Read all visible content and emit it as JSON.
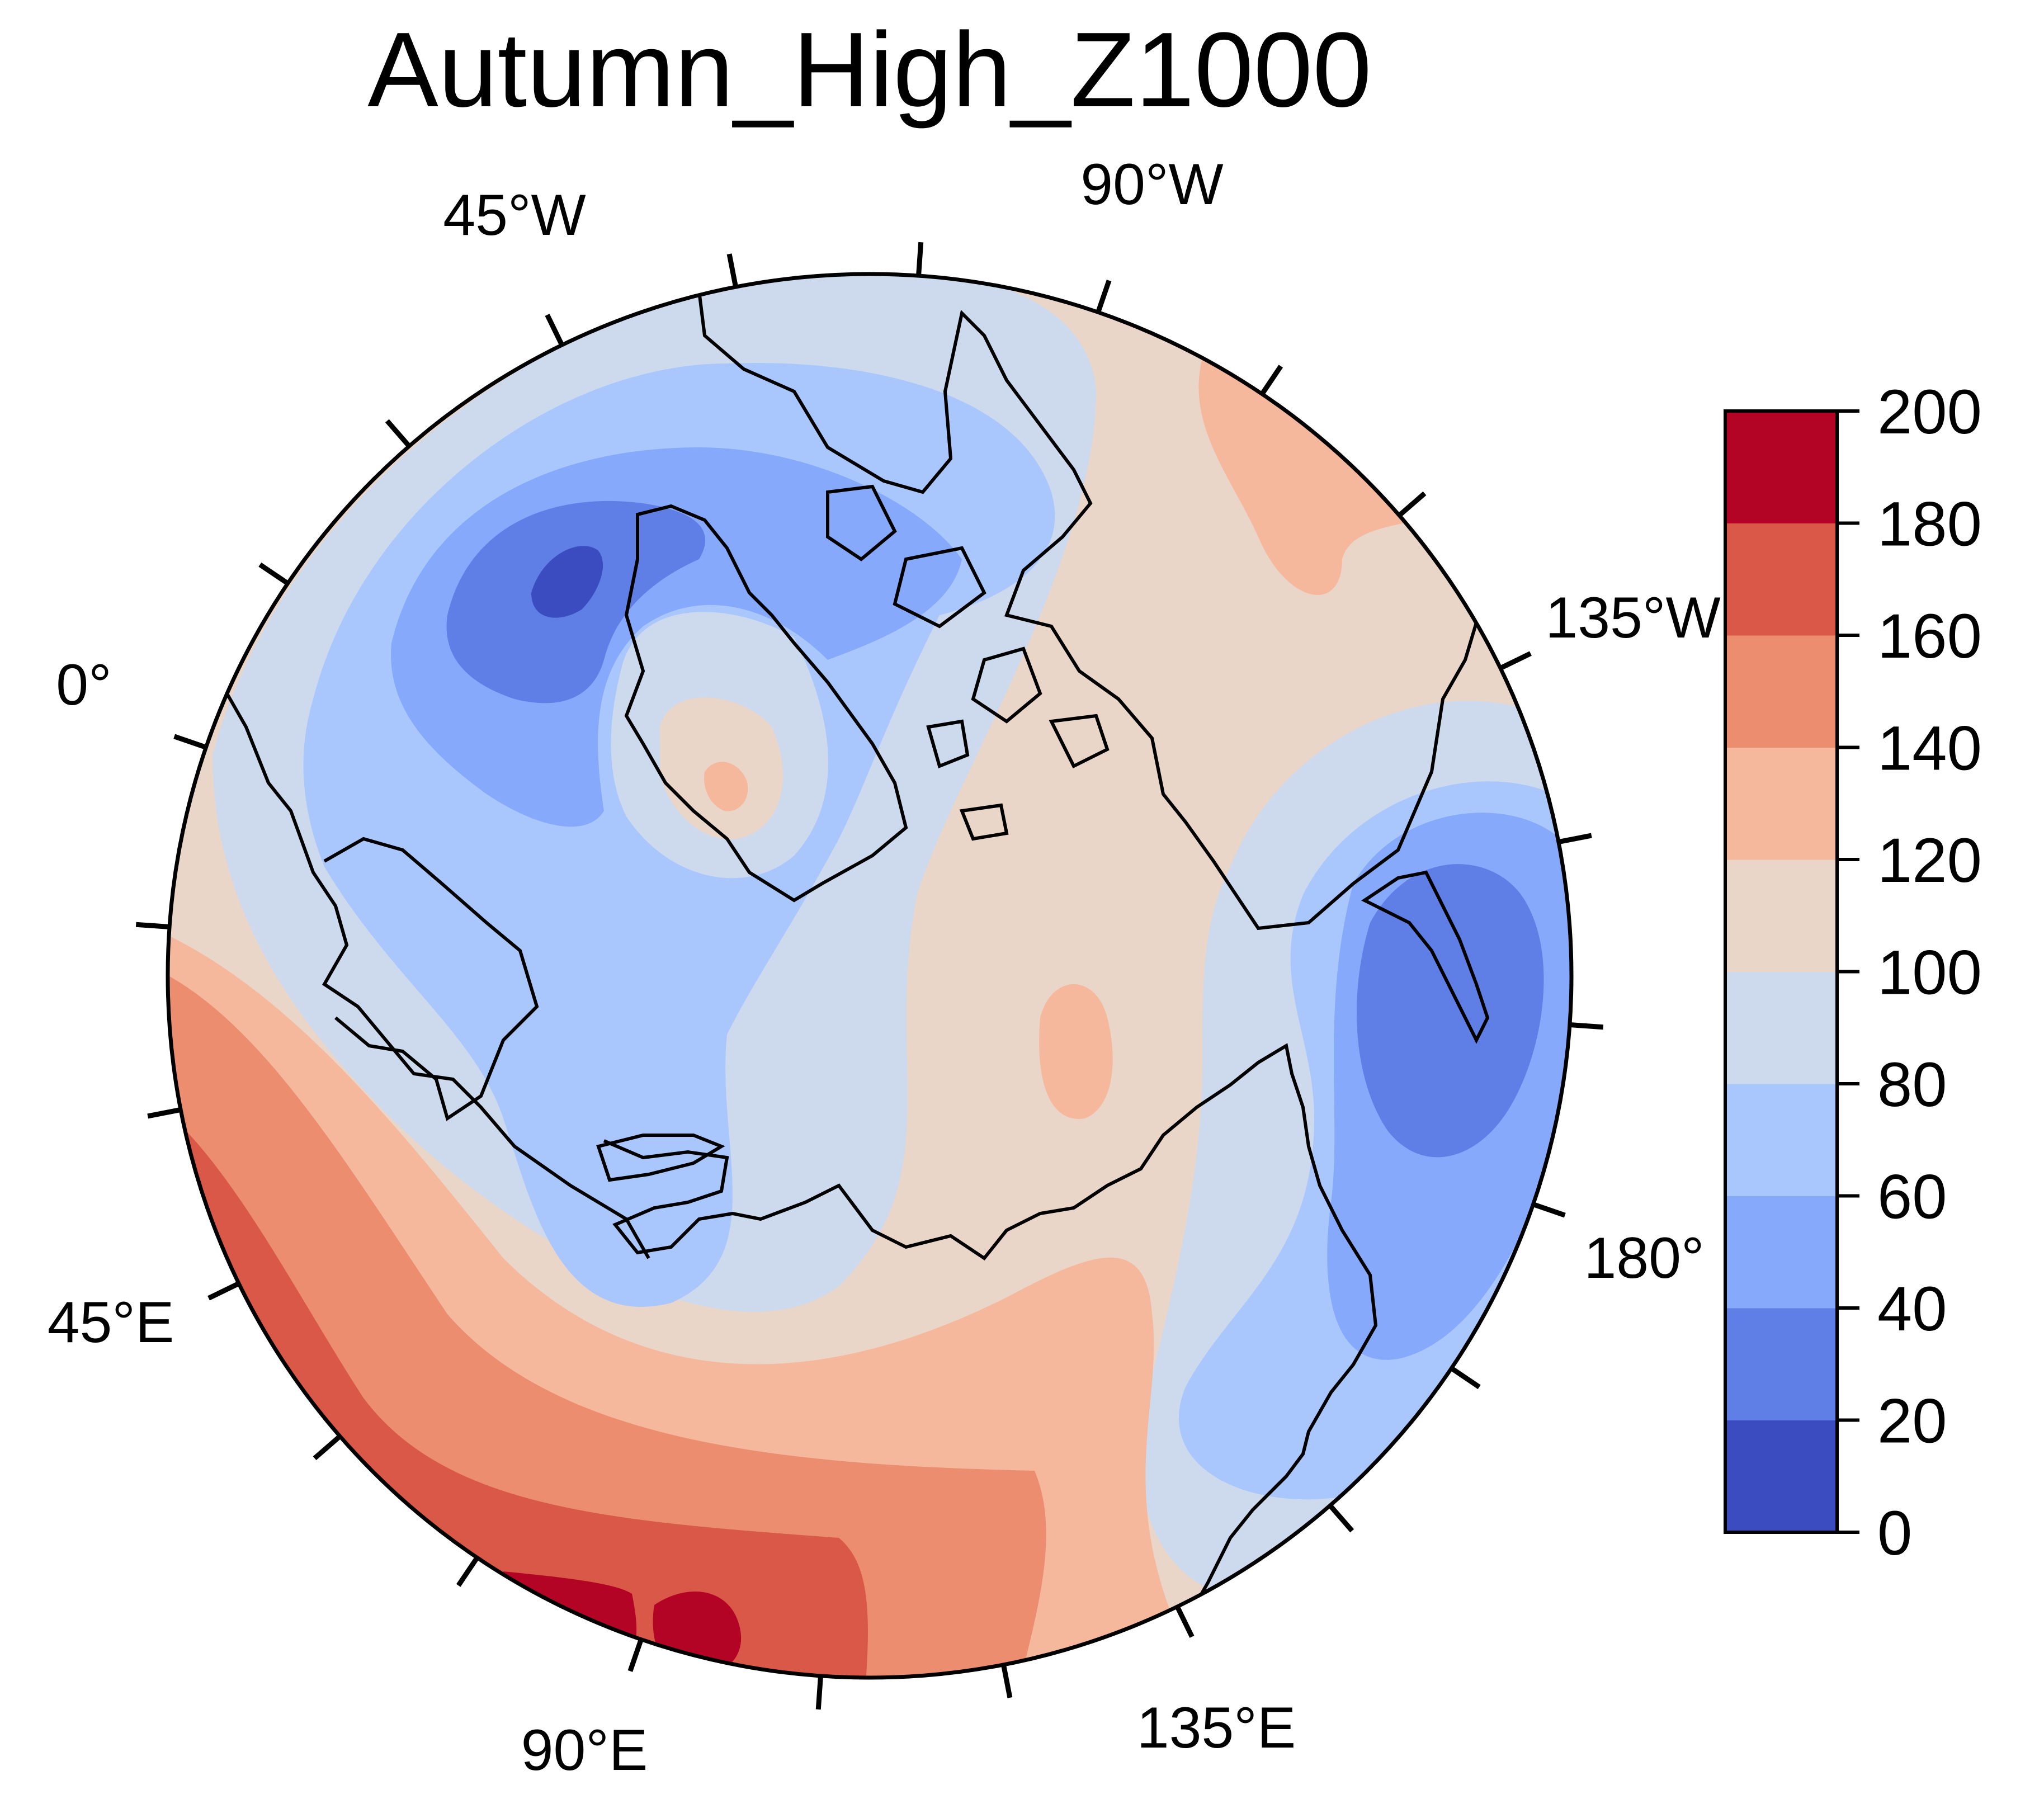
{
  "title": "Autumn_High_Z1000",
  "map": {
    "projection": "north-polar-stereographic",
    "longitude_labels": [
      "45°W",
      "90°W",
      "135°W",
      "0°",
      "180°",
      "45°E",
      "90°E",
      "135°E"
    ]
  },
  "colorbar": {
    "levels": [
      0,
      20,
      40,
      60,
      80,
      100,
      120,
      140,
      160,
      180,
      200
    ],
    "tick_labels": [
      "0",
      "20",
      "40",
      "60",
      "80",
      "100",
      "120",
      "140",
      "160",
      "180",
      "200"
    ],
    "colors": [
      "#3b4cc0",
      "#5f7fe6",
      "#86a9fc",
      "#aac7fd",
      "#cdd9ec",
      "#ead5c9",
      "#f6b89c",
      "#ed8d6f",
      "#d95847",
      "#b40426"
    ]
  },
  "colors": {
    "coastline": "#000000",
    "frame": "#000000"
  }
}
